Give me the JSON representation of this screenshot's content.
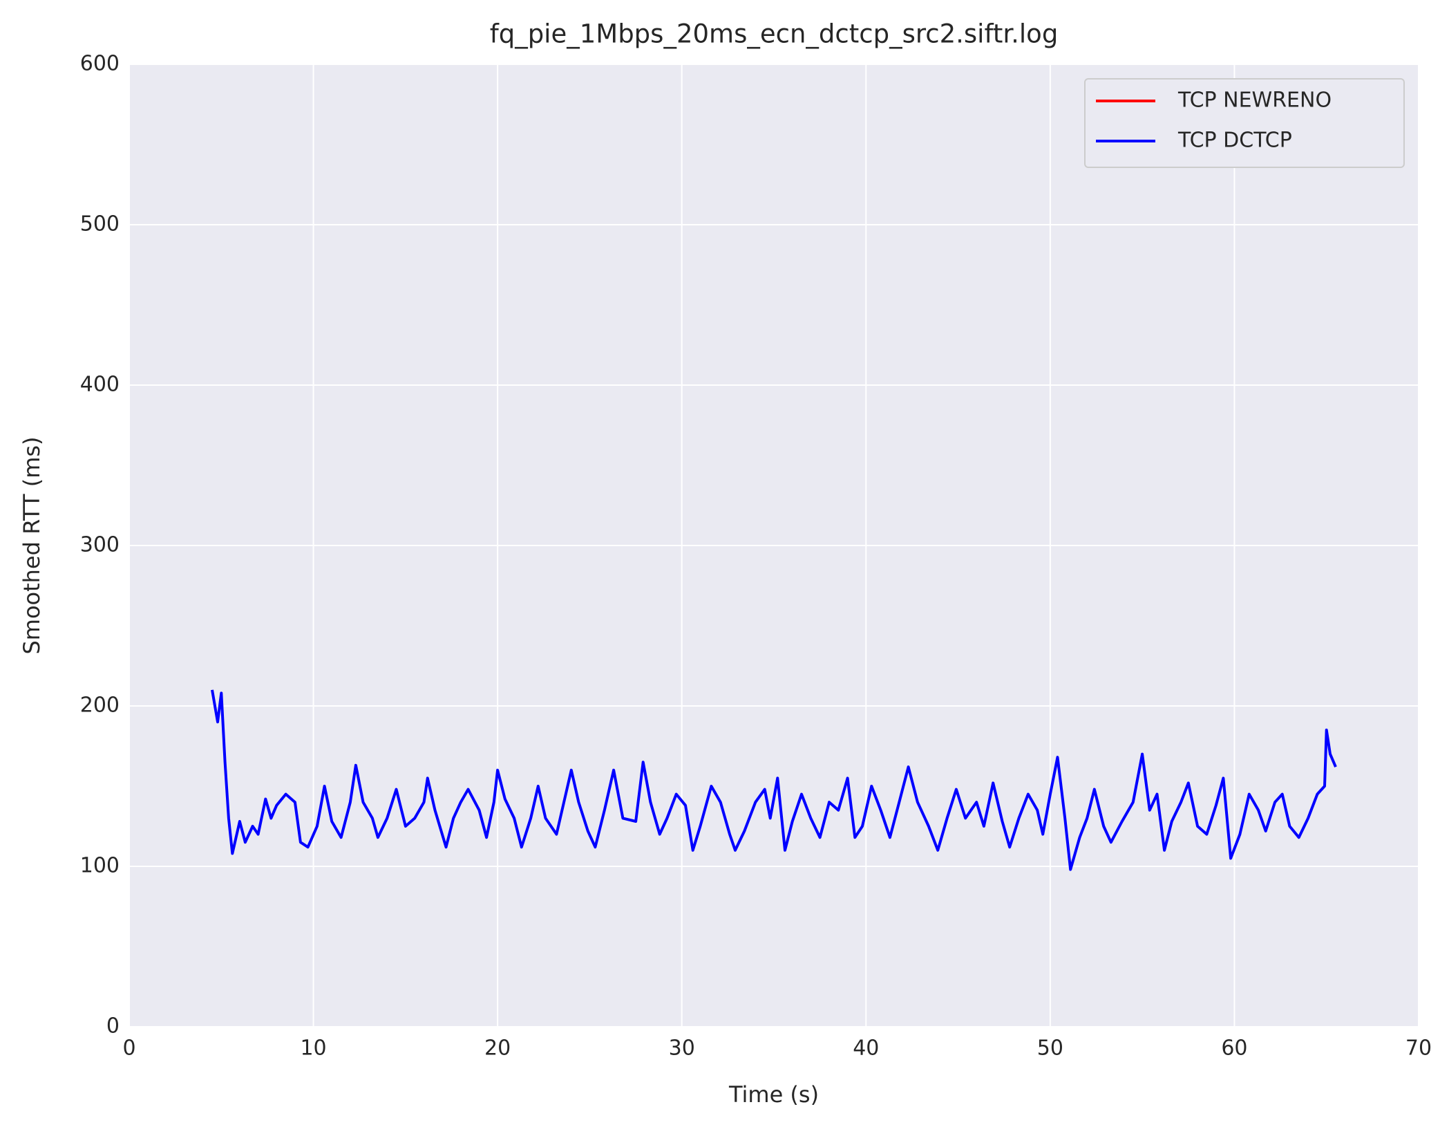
{
  "chart_data": {
    "type": "line",
    "title": "fq_pie_1Mbps_20ms_ecn_dctcp_src2.siftr.log",
    "xlabel": "Time (s)",
    "ylabel": "Smoothed RTT (ms)",
    "xlim": [
      0,
      70
    ],
    "ylim": [
      0,
      600
    ],
    "xticks": [
      0,
      10,
      20,
      30,
      40,
      50,
      60,
      70
    ],
    "yticks": [
      0,
      100,
      200,
      300,
      400,
      500,
      600
    ],
    "grid": true,
    "legend": "upper right",
    "series": [
      {
        "name": "TCP NEWRENO",
        "color": "#ff0000",
        "x": [],
        "values": []
      },
      {
        "name": "TCP DCTCP",
        "color": "#0000ff",
        "x": [
          4.5,
          4.8,
          5.0,
          5.2,
          5.4,
          5.6,
          6.0,
          6.3,
          6.7,
          7.0,
          7.4,
          7.7,
          8.0,
          8.5,
          9.0,
          9.3,
          9.7,
          10.2,
          10.6,
          11.0,
          11.5,
          12.0,
          12.3,
          12.7,
          13.2,
          13.5,
          14.0,
          14.5,
          15.0,
          15.5,
          16.0,
          16.2,
          16.6,
          17.2,
          17.6,
          18.0,
          18.4,
          19.0,
          19.4,
          19.8,
          20.0,
          20.4,
          20.9,
          21.3,
          21.8,
          22.2,
          22.6,
          23.2,
          23.6,
          24.0,
          24.4,
          24.9,
          25.3,
          25.8,
          26.3,
          26.8,
          27.5,
          27.9,
          28.3,
          28.8,
          29.2,
          29.7,
          30.2,
          30.6,
          31.0,
          31.6,
          32.1,
          32.6,
          32.9,
          33.4,
          34.0,
          34.5,
          34.8,
          35.2,
          35.6,
          36.0,
          36.5,
          37.0,
          37.5,
          38.0,
          38.5,
          39.0,
          39.4,
          39.8,
          40.3,
          40.8,
          41.3,
          41.8,
          42.3,
          42.8,
          43.4,
          43.9,
          44.4,
          44.9,
          45.4,
          46.0,
          46.4,
          46.9,
          47.4,
          47.8,
          48.3,
          48.8,
          49.3,
          49.6,
          50.0,
          50.4,
          50.8,
          51.1,
          51.6,
          52.0,
          52.4,
          52.9,
          53.3,
          53.9,
          54.5,
          55.0,
          55.4,
          55.8,
          56.2,
          56.6,
          57.1,
          57.5,
          58.0,
          58.5,
          59.0,
          59.4,
          59.8,
          60.3,
          60.8,
          61.3,
          61.7,
          62.2,
          62.6,
          63.0,
          63.5,
          64.0,
          64.5,
          64.9,
          65.0,
          65.2,
          65.5
        ],
        "values": [
          210,
          190,
          208,
          165,
          130,
          108,
          128,
          115,
          125,
          120,
          142,
          130,
          138,
          145,
          140,
          115,
          112,
          125,
          150,
          128,
          118,
          140,
          163,
          140,
          130,
          118,
          130,
          148,
          125,
          130,
          140,
          155,
          135,
          112,
          130,
          140,
          148,
          135,
          118,
          140,
          160,
          142,
          130,
          112,
          130,
          150,
          130,
          120,
          140,
          160,
          140,
          122,
          112,
          135,
          160,
          130,
          128,
          165,
          140,
          120,
          130,
          145,
          138,
          110,
          125,
          150,
          140,
          120,
          110,
          122,
          140,
          148,
          130,
          155,
          110,
          128,
          145,
          130,
          118,
          140,
          135,
          155,
          118,
          125,
          150,
          135,
          118,
          140,
          162,
          140,
          125,
          110,
          130,
          148,
          130,
          140,
          125,
          152,
          128,
          112,
          130,
          145,
          135,
          120,
          145,
          168,
          130,
          98,
          118,
          130,
          148,
          125,
          115,
          128,
          140,
          170,
          135,
          145,
          110,
          128,
          140,
          152,
          125,
          120,
          138,
          155,
          105,
          120,
          145,
          135,
          122,
          140,
          145,
          125,
          118,
          130,
          145,
          150,
          185,
          170,
          162
        ]
      }
    ]
  }
}
